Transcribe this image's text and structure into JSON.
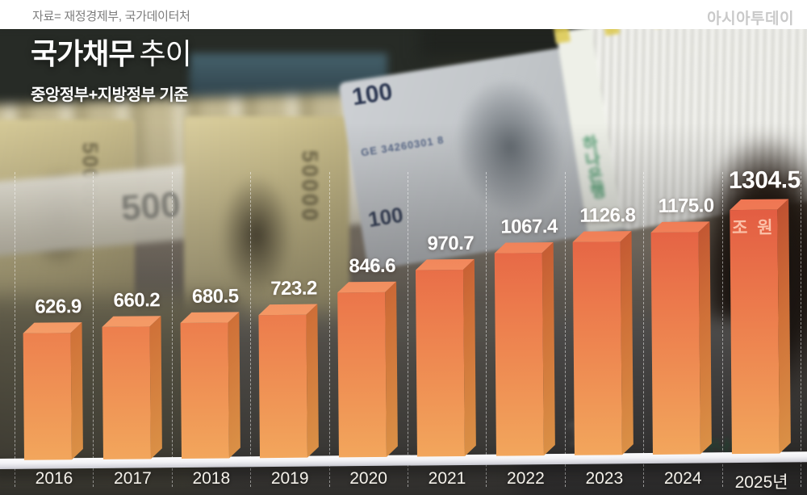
{
  "meta_bar": {
    "source": "자료= 재정경제부, 국가데이터처",
    "brand": "아시아투데이"
  },
  "header": {
    "title_strong": "국가채무",
    "title_light": "추이",
    "subtitle": "중앙정부+지방정부 기준"
  },
  "chart_data": {
    "type": "bar",
    "title": "국가채무 추이",
    "subtitle": "중앙정부+지방정부 기준",
    "unit": "조 원",
    "categories": [
      "2016",
      "2017",
      "2018",
      "2019",
      "2020",
      "2021",
      "2022",
      "2023",
      "2024",
      "2025년"
    ],
    "values": [
      626.9,
      660.2,
      680.5,
      723.2,
      846.6,
      970.7,
      1067.4,
      1126.8,
      1175.0,
      1304.5
    ],
    "highlight_index": 9,
    "legend": "none",
    "grid": "vertical-dashed-white",
    "colors": {
      "bar_front_top": "#e05540",
      "bar_front_bottom": "#f2a65c",
      "bar_side": "#cf7038",
      "bar_top_face": "#f49a66",
      "value_label": "#ffffff",
      "axis_label": "#f4f1ea",
      "platform": "#f2f2f5"
    }
  },
  "background_photo": {
    "description": "Blurred photo: stacks of Korean 50,000-won bundles on the left, wrapped US $100 bundles upper right, dark teller room behind",
    "won_note_value": "50000",
    "won_strap_value": "500",
    "dollar_note_value": "100",
    "dollar_serial": "GE 34260301 8",
    "strap_bank_text": "하나은행"
  }
}
